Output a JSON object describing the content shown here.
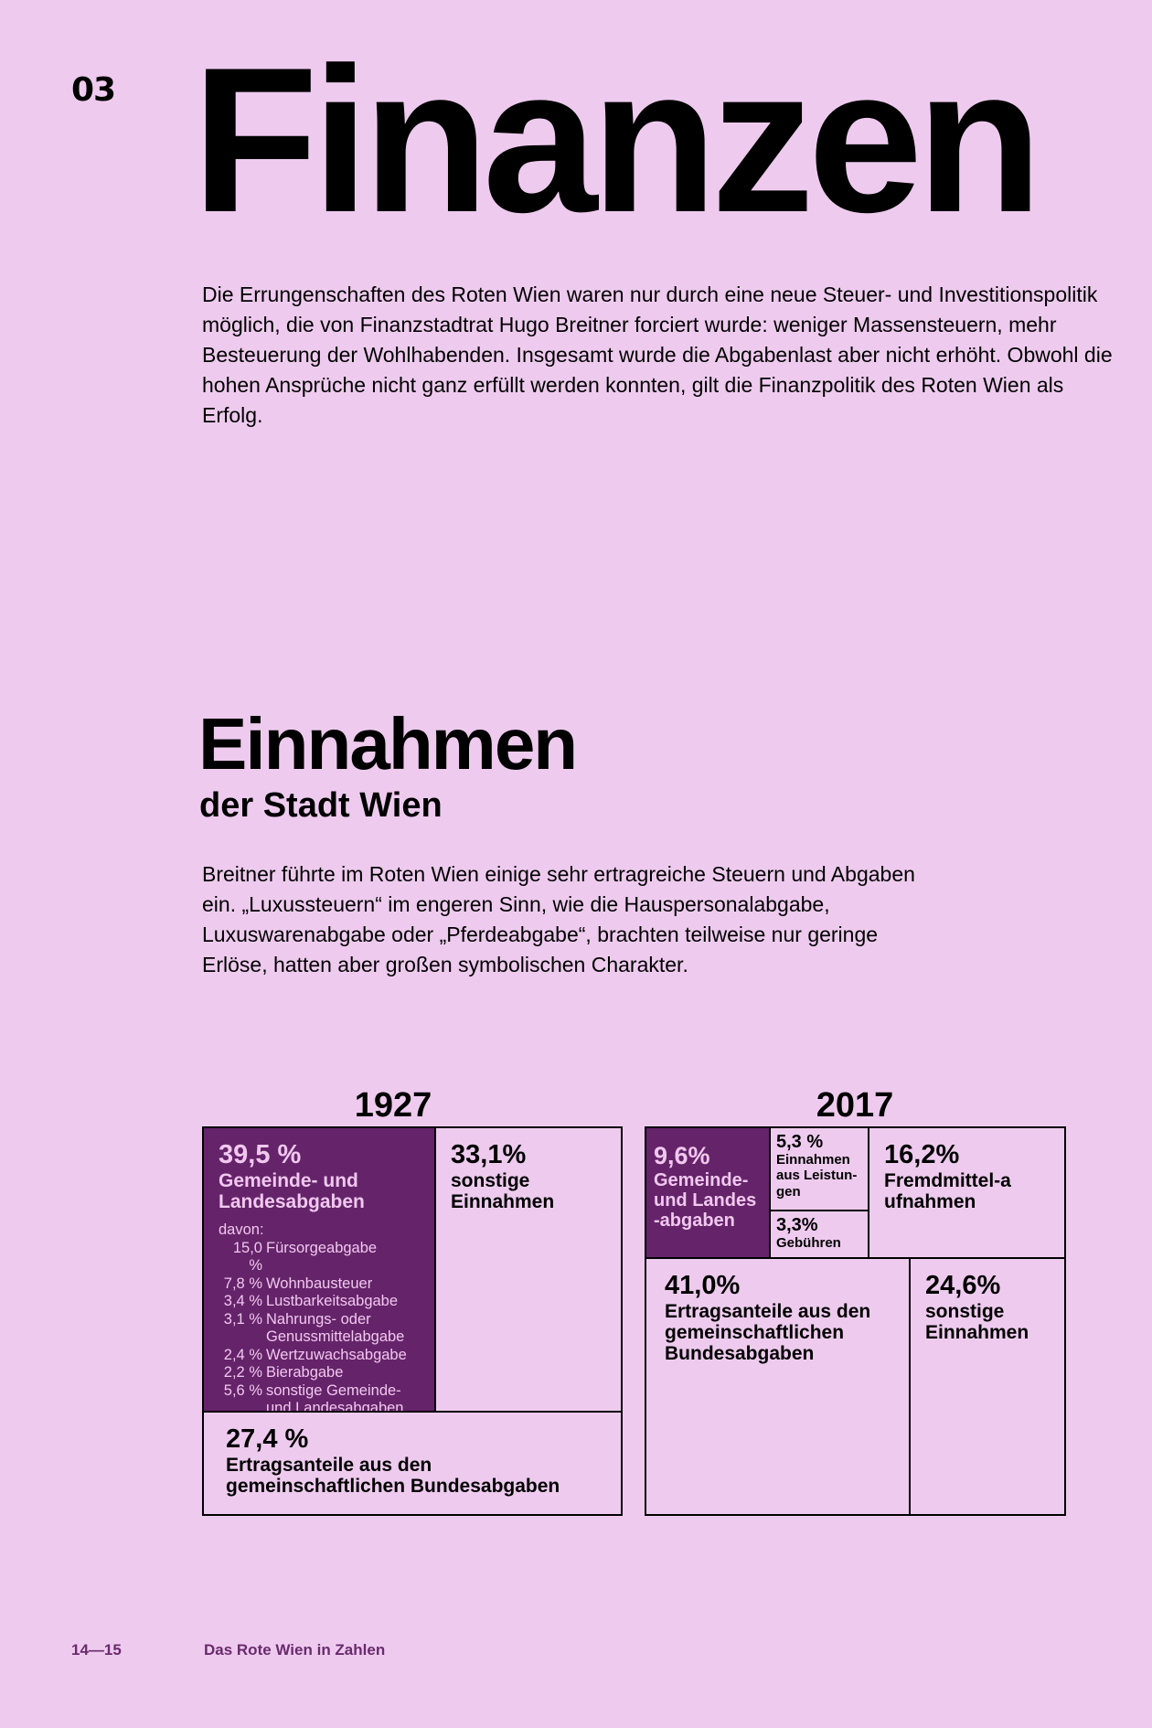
{
  "chapter_number": "03",
  "title": "Finanzen",
  "intro": "Die Errungenschaften des Roten Wien waren nur durch eine neue Steuer- und Investitionspolitik möglich, die von Finanzstadtrat Hugo Breitner forciert wurde: weniger Massensteuern, mehr Besteuerung der Wohlhabenden. Insgesamt wurde die Abgabenlast aber nicht erhöht. Obwohl die hohen Ansprüche nicht ganz erfüllt werden konnten, gilt die Finanzpolitik des Roten Wien als Erfolg.",
  "section": {
    "heading": "Einnahmen",
    "subheading": "der Stadt Wien",
    "text": "Breitner führte im Roten Wien einige sehr ertragreiche Steuern und Abgaben ein. „Luxussteuern“ im engeren Sinn, wie die Hauspersonalabgabe, Luxuswarenabgabe oder „Pferdeabgabe“, brachten teilweise nur geringe Erlöse, hatten aber großen symbolischen Charakter."
  },
  "charts": {
    "y1927": {
      "year": "1927",
      "gemeinde": {
        "pct": "39,5 %",
        "label": "Gemeinde- und Landesabgaben",
        "davon": "davon:",
        "items": [
          {
            "v": "15,0 %",
            "t": "Fürsorgeabgabe"
          },
          {
            "v": "7,8 %",
            "t": "Wohnbausteuer"
          },
          {
            "v": "3,4 %",
            "t": "Lustbarkeitsabgabe"
          },
          {
            "v": "3,1 %",
            "t": "Nahrungs- oder Genussmittelabgabe"
          },
          {
            "v": "2,4 %",
            "t": "Wertzuwachsabgabe"
          },
          {
            "v": "2,2 %",
            "t": "Bierabgabe"
          },
          {
            "v": "5,6 %",
            "t": "sonstige Gemeinde- und Landesabgaben"
          }
        ]
      },
      "sonstige": {
        "pct": "33,1%",
        "label": "sonstige Einnahmen"
      },
      "ertrag": {
        "pct": "27,4 %",
        "label": "Ertragsanteile aus den gemeinschaftlichen Bundesabgaben"
      }
    },
    "y2017": {
      "year": "2017",
      "gemeinde": {
        "pct": "9,6%",
        "label": "Gemeinde- und Landes-abgaben"
      },
      "leistungen": {
        "pct": "5,3 %",
        "label": "Einnahmen aus Leistun-gen"
      },
      "gebuehren": {
        "pct": "3,3%",
        "label": "Gebühren"
      },
      "fremd": {
        "pct": "16,2%",
        "label": "Fremdmittel-aufnahmen"
      },
      "ertrag": {
        "pct": "41,0%",
        "label": "Ertragsanteile aus den gemeinschaftlichen Bundesabgaben"
      },
      "sonstige": {
        "pct": "24,6%",
        "label": "sonstige Einnahmen"
      }
    }
  },
  "colors": {
    "background": "#eecbee",
    "accent": "#65236a",
    "footer": "#6a2a6e"
  },
  "footer": {
    "pages": "14—15",
    "title": "Das Rote Wien in Zahlen"
  }
}
